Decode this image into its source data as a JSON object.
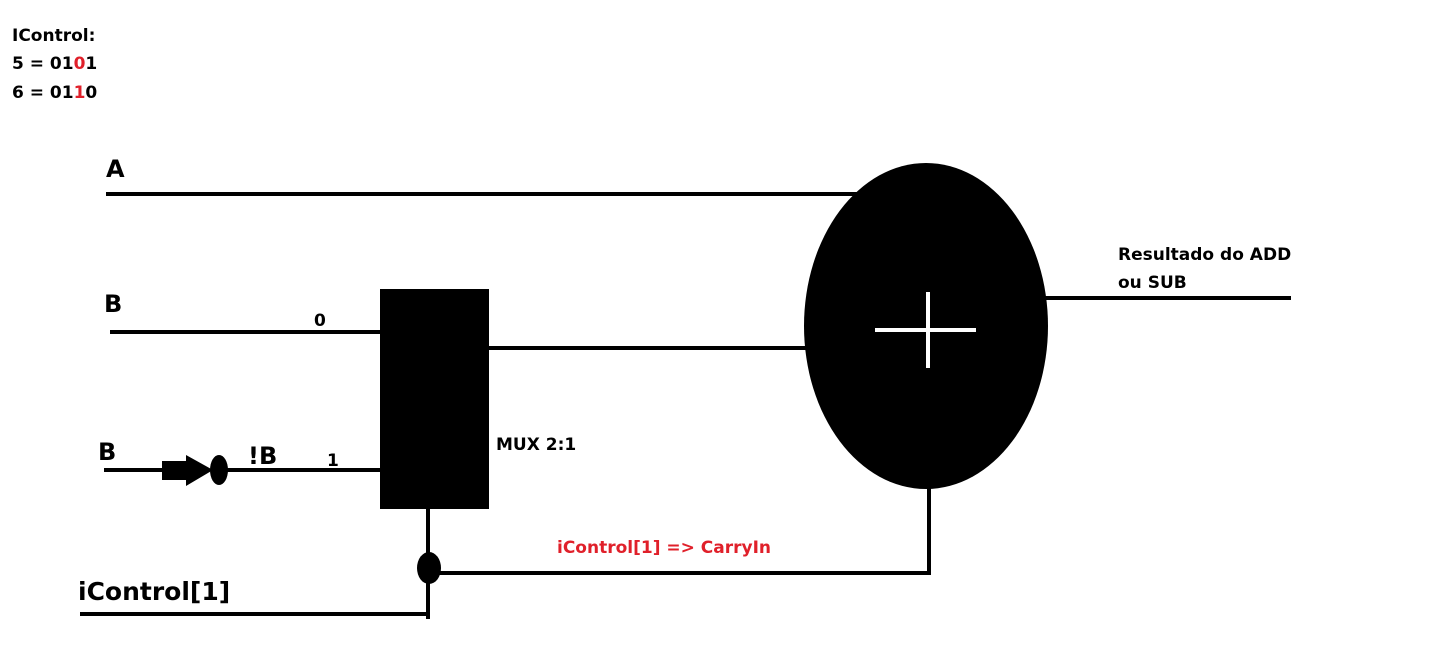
{
  "header": {
    "title": "IControl:",
    "line_5": {
      "prefix": "5 = 01",
      "highlight": "0",
      "suffix": "1"
    },
    "line_6": {
      "prefix": "6 = 01",
      "highlight": "1",
      "suffix": "0"
    }
  },
  "inputs": {
    "a": "A",
    "b": "B",
    "b_negated_source": "B",
    "not_b": "!B",
    "control": "iControl[1]"
  },
  "mux": {
    "label": "MUX 2:1",
    "input_0": "0",
    "input_1": "1"
  },
  "adder": {
    "symbol": "+"
  },
  "output": {
    "line1": "Resultado do ADD",
    "line2": "ou SUB"
  },
  "carry_note": "iControl[1] => CarryIn",
  "colors": {
    "ink": "#000000",
    "highlight": "#e0202a",
    "background": "#ffffff"
  }
}
